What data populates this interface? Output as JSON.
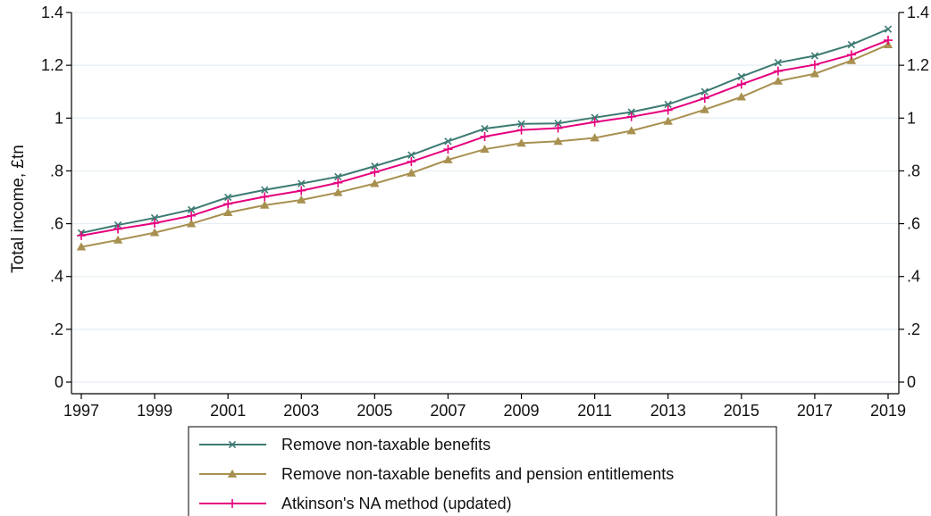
{
  "chart_data": {
    "type": "line",
    "title": "",
    "xlabel": "",
    "ylabel": "Total income, £tn",
    "x": [
      1997,
      1998,
      1999,
      2000,
      2001,
      2002,
      2003,
      2004,
      2005,
      2006,
      2007,
      2008,
      2009,
      2010,
      2011,
      2012,
      2013,
      2014,
      2015,
      2016,
      2017,
      2018,
      2019
    ],
    "xticks": [
      1997,
      1999,
      2001,
      2003,
      2005,
      2007,
      2009,
      2011,
      2013,
      2015,
      2017,
      2019
    ],
    "xtick_labels": [
      "1997",
      "1999",
      "2001",
      "2003",
      "2005",
      "2007",
      "2009",
      "2011",
      "2013",
      "2015",
      "2017",
      "2019"
    ],
    "yticks": [
      0,
      0.2,
      0.4,
      0.6,
      0.8,
      1,
      1.2,
      1.4
    ],
    "ytick_labels": [
      "0",
      ".2",
      ".4",
      ".6",
      ".8",
      "1",
      "1.2",
      "1.4"
    ],
    "ylim": [
      0,
      1.4
    ],
    "xlim": [
      1997,
      2019
    ],
    "grid": "horizontal",
    "legend_position": "bottom",
    "right_axis_mirror": true,
    "series": [
      {
        "name": "Remove non-taxable benefits",
        "color": "#3c7a72",
        "marker": "x",
        "values": [
          0.565,
          0.595,
          0.622,
          0.653,
          0.7,
          0.728,
          0.752,
          0.778,
          0.818,
          0.86,
          0.912,
          0.96,
          0.978,
          0.98,
          1.002,
          1.023,
          1.052,
          1.1,
          1.157,
          1.21,
          1.236,
          1.278,
          1.337
        ]
      },
      {
        "name": "Remove non-taxable benefits and pension entitlements",
        "color": "#a89050",
        "marker": "triangle",
        "values": [
          0.512,
          0.538,
          0.566,
          0.6,
          0.642,
          0.67,
          0.69,
          0.718,
          0.752,
          0.792,
          0.842,
          0.882,
          0.905,
          0.912,
          0.925,
          0.952,
          0.988,
          1.032,
          1.08,
          1.14,
          1.168,
          1.218,
          1.278
        ]
      },
      {
        "name": "Atkinson's NA method (updated)",
        "color": "#e6007e",
        "marker": "plus",
        "values": [
          0.555,
          0.58,
          0.602,
          0.63,
          0.675,
          0.702,
          0.725,
          0.755,
          0.795,
          0.835,
          0.882,
          0.93,
          0.955,
          0.962,
          0.985,
          1.005,
          1.03,
          1.075,
          1.128,
          1.178,
          1.202,
          1.24,
          1.295
        ]
      }
    ]
  }
}
